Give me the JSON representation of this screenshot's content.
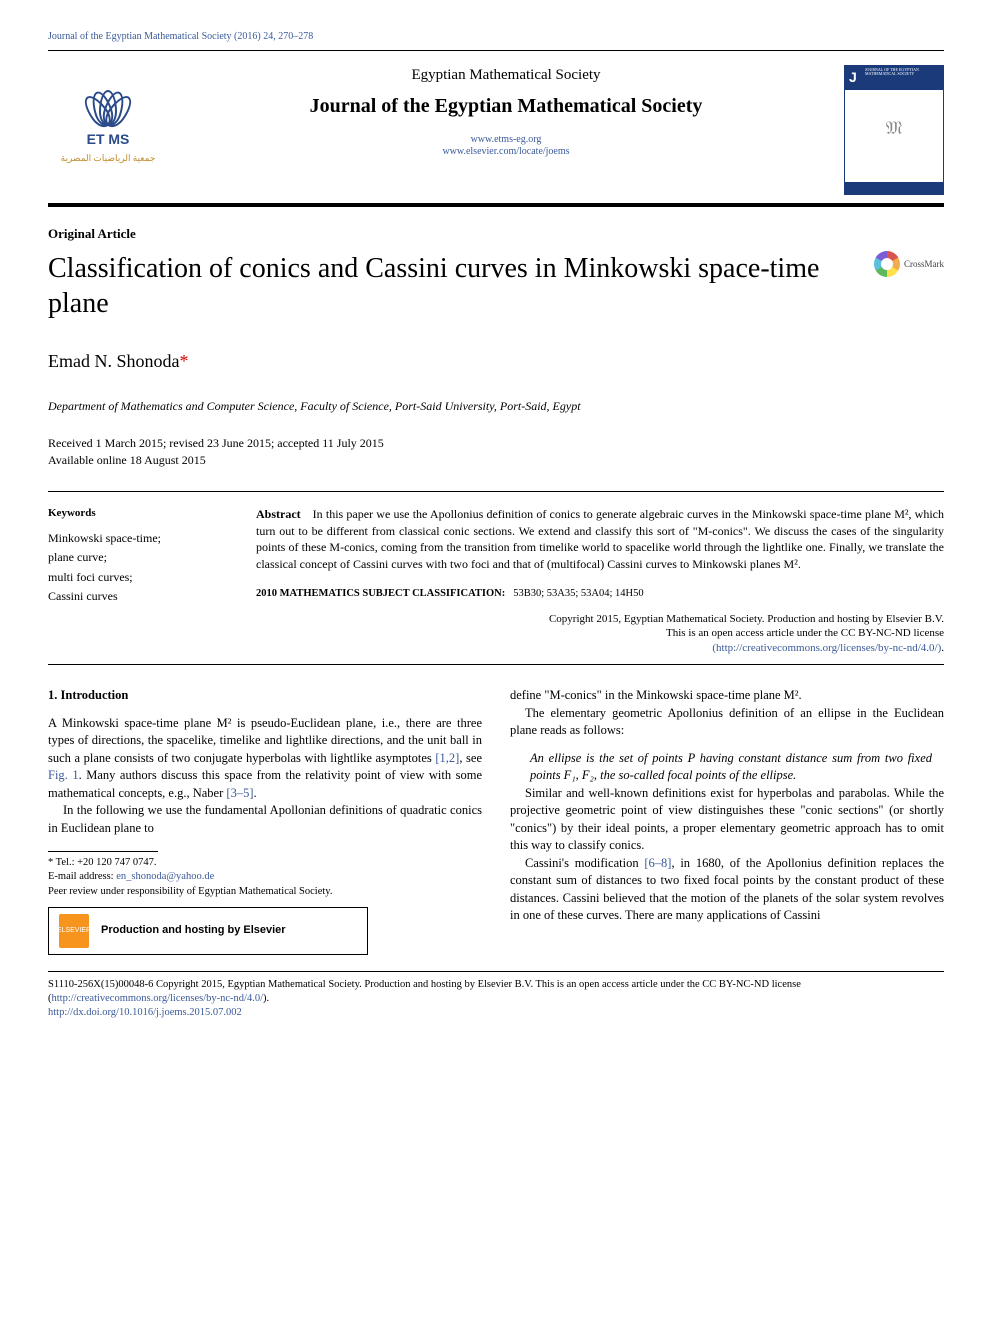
{
  "running_head": "Journal of the Egyptian Mathematical Society (2016) 24, 270–278",
  "header": {
    "society": "Egyptian Mathematical Society",
    "journal": "Journal of the Egyptian Mathematical Society",
    "link1": "www.etms-eg.org",
    "link2": "www.elsevier.com/locate/joems",
    "logo_initials": "ET\nMS",
    "logo_arabic": "جمعية الرياضيات المصرية"
  },
  "crossmark_label": "CrossMark",
  "article_type": "Original Article",
  "title": "Classification of conics and Cassini curves in Minkowski space-time plane",
  "author": "Emad N. Shonoda",
  "author_marker": "*",
  "affiliation": "Department of Mathematics and Computer Science, Faculty of Science, Port-Said University, Port-Said, Egypt",
  "dates_line1": "Received 1 March 2015; revised 23 June 2015; accepted 11 July 2015",
  "dates_line2": "Available online 18 August 2015",
  "keywords_head": "Keywords",
  "keywords": "Minkowski space-time;\nplane curve;\nmulti foci curves;\nCassini curves",
  "abstract_head": "Abstract",
  "abstract": "In this paper we use the Apollonius definition of conics to generate algebraic curves in the Minkowski space-time plane M², which turn out to be different from classical conic sections. We extend and classify this sort of \"M-conics\". We discuss the cases of the singularity points of these M-conics, coming from the transition from timelike world to spacelike world through the lightlike one. Finally, we translate the classical concept of Cassini curves with two foci and that of (multifocal) Cassini curves to Minkowski planes M².",
  "msc_head": "2010 MATHEMATICS SUBJECT CLASSIFICATION:",
  "msc": "53B30; 53A35; 53A04; 14H50",
  "copyright_line1": "Copyright 2015, Egyptian Mathematical Society. Production and hosting by Elsevier B.V.",
  "copyright_line2": "This is an open access article under the CC BY-NC-ND license",
  "copyright_link": "(http://creativecommons.org/licenses/by-nc-nd/4.0/)",
  "copyright_dot": ".",
  "intro": {
    "head": "1.  Introduction",
    "p1a": "A Minkowski space-time plane M² is pseudo-Euclidean plane, i.e., there are three types of directions, the spacelike, timelike and lightlike directions, and the unit ball in such a plane consists of two conjugate hyperbolas with lightlike asymptotes ",
    "p1_ref1": "[1,2]",
    "p1b": ", see ",
    "p1_ref2": "Fig. 1",
    "p1c": ". Many authors discuss this space from the relativity point of view with some mathematical concepts, e.g., Naber ",
    "p1_ref3": "[3–5]",
    "p1d": ".",
    "p2": "In the following we use the fundamental Apollonian definitions of quadratic conics in Euclidean plane to ",
    "p2_cont": "define \"M-conics\" in the Minkowski space-time plane M².",
    "p3": "The elementary geometric Apollonius definition of an ellipse in the Euclidean plane reads as follows:",
    "quote": "An ellipse is the set of points P having constant distance sum from two fixed points F₁, F₂, the so-called focal points of the ellipse.",
    "p4": "Similar and well-known definitions exist for hyperbolas and parabolas. While the projective geometric point of view distinguishes these \"conic sections\" (or shortly \"conics\") by their ideal points, a proper elementary geometric approach has to omit this way to classify conics.",
    "p5a": "Cassini's modification ",
    "p5_ref": "[6–8]",
    "p5b": ", in 1680, of the Apollonius definition replaces the constant sum of distances to two fixed focal points by the constant product of these distances. Cassini believed that the motion of the planets of the solar system revolves in one of these curves. There are many applications of Cassini"
  },
  "footnotes": {
    "tel_label": "* Tel.: ",
    "tel": "+20 120 747 0747.",
    "email_label": "E-mail address: ",
    "email": "en_shonoda@yahoo.de",
    "peer": "Peer review under responsibility of Egyptian Mathematical Society."
  },
  "elsevier_box": "Production and hosting by Elsevier",
  "bottom": {
    "line1a": "S1110-256X(15)00048-6 Copyright 2015, Egyptian Mathematical Society. Production and hosting by Elsevier B.V. This is an open access article under the CC BY-NC-ND license (",
    "line1link": "http://creativecommons.org/licenses/by-nc-nd/4.0/",
    "line1b": ").",
    "doi": "http://dx.doi.org/10.1016/j.joems.2015.07.002"
  },
  "colors": {
    "link": "#3a5a9a",
    "brand_orange": "#f7941e",
    "accent_red": "#c00"
  }
}
